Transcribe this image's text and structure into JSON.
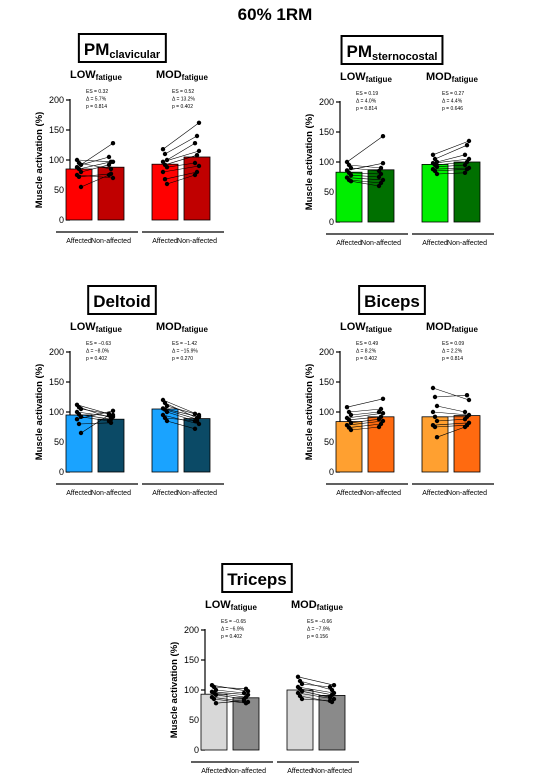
{
  "figure_title": "60% 1RM",
  "ylabel": "Muscle activation (%)",
  "yticks": [
    "0",
    "50",
    "100",
    "150",
    "200"
  ],
  "categories": [
    "Affected",
    "Non-affected"
  ],
  "conditions": [
    {
      "main": "LOW",
      "sub": "fatigue"
    },
    {
      "main": "MOD",
      "sub": "fatigue"
    }
  ],
  "chart_data": [
    {
      "type": "bar",
      "title_main": "PM",
      "title_sub": "clavicular",
      "ylim": [
        0,
        200
      ],
      "colors": [
        "#ff0000",
        "#c00000"
      ],
      "categories": [
        "Affected",
        "Non-affected"
      ],
      "groups": [
        {
          "label": "LOW",
          "values": [
            85,
            88
          ],
          "stats": [
            "ES = 0.32",
            "Δ = 5.7%",
            "p = 0.814"
          ],
          "pairs": [
            [
              100,
              97
            ],
            [
              95,
              85
            ],
            [
              92,
              105
            ],
            [
              88,
              128
            ],
            [
              85,
              97
            ],
            [
              80,
              92
            ],
            [
              75,
              70
            ],
            [
              72,
              77
            ],
            [
              55,
              75
            ]
          ]
        },
        {
          "label": "MOD",
          "values": [
            93,
            105
          ],
          "stats": [
            "ES = 0.52",
            "Δ = 13.2%",
            "p = 0.402"
          ],
          "pairs": [
            [
              118,
              162
            ],
            [
              110,
              140
            ],
            [
              100,
              128
            ],
            [
              97,
              115
            ],
            [
              92,
              108
            ],
            [
              88,
              95
            ],
            [
              80,
              90
            ],
            [
              68,
              80
            ],
            [
              60,
              75
            ]
          ]
        }
      ]
    },
    {
      "type": "bar",
      "title_main": "PM",
      "title_sub": "sternocostal",
      "ylim": [
        0,
        200
      ],
      "colors": [
        "#00ee00",
        "#007000"
      ],
      "categories": [
        "Affected",
        "Non-affected"
      ],
      "groups": [
        {
          "label": "LOW",
          "values": [
            83,
            87
          ],
          "stats": [
            "ES = 0.19",
            "Δ = 4.0%",
            "p = 0.814"
          ],
          "pairs": [
            [
              100,
              143
            ],
            [
              95,
              90
            ],
            [
              90,
              85
            ],
            [
              86,
              98
            ],
            [
              82,
              80
            ],
            [
              78,
              75
            ],
            [
              74,
              70
            ],
            [
              70,
              65
            ],
            [
              68,
              60
            ]
          ]
        },
        {
          "label": "MOD",
          "values": [
            96,
            100
          ],
          "stats": [
            "ES = 0.27",
            "Δ = 4.4%",
            "p = 0.646"
          ],
          "pairs": [
            [
              112,
              135
            ],
            [
              105,
              128
            ],
            [
              100,
              112
            ],
            [
              98,
              105
            ],
            [
              95,
              100
            ],
            [
              92,
              95
            ],
            [
              88,
              90
            ],
            [
              85,
              88
            ],
            [
              80,
              82
            ]
          ]
        }
      ]
    },
    {
      "type": "bar",
      "title_main": "Deltoid",
      "title_sub": "",
      "ylim": [
        0,
        200
      ],
      "colors": [
        "#1aa3ff",
        "#0b4a66"
      ],
      "categories": [
        "Affected",
        "Non-affected"
      ],
      "groups": [
        {
          "label": "LOW",
          "values": [
            95,
            88
          ],
          "stats": [
            "ES = −0.63",
            "Δ = −8.0%",
            "p = 0.402"
          ],
          "pairs": [
            [
              112,
              95
            ],
            [
              108,
              90
            ],
            [
              105,
              97
            ],
            [
              100,
              92
            ],
            [
              96,
              88
            ],
            [
              92,
              85
            ],
            [
              88,
              102
            ],
            [
              80,
              82
            ],
            [
              65,
              95
            ]
          ]
        },
        {
          "label": "MOD",
          "values": [
            105,
            89
          ],
          "stats": [
            "ES = −1.42",
            "Δ = −15.9%",
            "p = 0.270"
          ],
          "pairs": [
            [
              120,
              95
            ],
            [
              115,
              90
            ],
            [
              110,
              97
            ],
            [
              106,
              92
            ],
            [
              104,
              88
            ],
            [
              100,
              85
            ],
            [
              95,
              80
            ],
            [
              90,
              85
            ],
            [
              85,
              72
            ]
          ]
        }
      ]
    },
    {
      "type": "bar",
      "title_main": "Biceps",
      "title_sub": "",
      "ylim": [
        0,
        200
      ],
      "colors": [
        "#ffa030",
        "#ff6a10"
      ],
      "categories": [
        "Affected",
        "Non-affected"
      ],
      "groups": [
        {
          "label": "LOW",
          "values": [
            84,
            92
          ],
          "stats": [
            "ES = 0.49",
            "Δ = 8.2%",
            "p = 0.402"
          ],
          "pairs": [
            [
              108,
              122
            ],
            [
              100,
              105
            ],
            [
              95,
              100
            ],
            [
              90,
              98
            ],
            [
              87,
              92
            ],
            [
              82,
              88
            ],
            [
              78,
              85
            ],
            [
              74,
              80
            ],
            [
              70,
              75
            ]
          ]
        },
        {
          "label": "MOD",
          "values": [
            92,
            94
          ],
          "stats": [
            "ES = 0.09",
            "Δ = 2.2%",
            "p = 0.814"
          ],
          "pairs": [
            [
              140,
              120
            ],
            [
              125,
              128
            ],
            [
              110,
              100
            ],
            [
              100,
              95
            ],
            [
              92,
              92
            ],
            [
              85,
              88
            ],
            [
              78,
              82
            ],
            [
              75,
              78
            ],
            [
              58,
              75
            ]
          ]
        }
      ]
    },
    {
      "type": "bar",
      "title_main": "Triceps",
      "title_sub": "",
      "ylim": [
        0,
        200
      ],
      "colors": [
        "#d8d8d8",
        "#8a8a8a"
      ],
      "categories": [
        "Affected",
        "Non-affected"
      ],
      "groups": [
        {
          "label": "LOW",
          "values": [
            93,
            87
          ],
          "stats": [
            "ES = −0.65",
            "Δ = −6.9%",
            "p = 0.402"
          ],
          "pairs": [
            [
              108,
              98
            ],
            [
              105,
              102
            ],
            [
              100,
              95
            ],
            [
              97,
              92
            ],
            [
              95,
              88
            ],
            [
              92,
              85
            ],
            [
              88,
              80
            ],
            [
              85,
              78
            ],
            [
              78,
              82
            ]
          ]
        },
        {
          "label": "MOD",
          "values": [
            100,
            91
          ],
          "stats": [
            "ES = −0.66",
            "Δ = −7.9%",
            "p = 0.156"
          ],
          "pairs": [
            [
              122,
              108
            ],
            [
              115,
              100
            ],
            [
              110,
              105
            ],
            [
              105,
              95
            ],
            [
              102,
              92
            ],
            [
              98,
              88
            ],
            [
              95,
              85
            ],
            [
              90,
              80
            ],
            [
              85,
              82
            ]
          ]
        }
      ]
    }
  ]
}
